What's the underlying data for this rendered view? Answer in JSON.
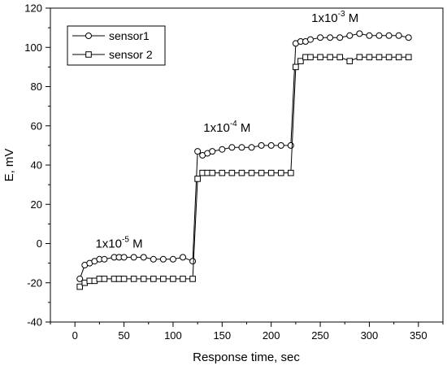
{
  "chart_data": {
    "type": "line",
    "xlabel": "Response time, sec",
    "ylabel": "E, mV",
    "xlim": [
      -25,
      375
    ],
    "ylim": [
      -40,
      120
    ],
    "xticks": [
      0,
      50,
      100,
      150,
      200,
      250,
      300,
      350
    ],
    "yticks": [
      -40,
      -20,
      0,
      20,
      40,
      60,
      80,
      100,
      120
    ],
    "grid": false,
    "legend_position": "top-left",
    "series": [
      {
        "name": "sensor1",
        "marker": "circle",
        "x": [
          5,
          10,
          15,
          20,
          25,
          30,
          40,
          45,
          50,
          60,
          70,
          80,
          90,
          100,
          110,
          120,
          125,
          130,
          135,
          140,
          150,
          160,
          170,
          180,
          190,
          200,
          210,
          220,
          225,
          230,
          235,
          240,
          250,
          260,
          270,
          280,
          290,
          300,
          310,
          320,
          330,
          340
        ],
        "y": [
          -18,
          -11,
          -10,
          -9,
          -8,
          -8,
          -7,
          -7,
          -7,
          -7,
          -7,
          -8,
          -8,
          -8,
          -7,
          -9,
          47,
          45,
          46,
          47,
          48,
          49,
          49,
          49,
          50,
          50,
          50,
          50,
          102,
          103,
          103,
          104,
          105,
          105,
          105,
          106,
          107,
          106,
          106,
          106,
          106,
          105
        ]
      },
      {
        "name": "sensor 2",
        "marker": "square",
        "x": [
          5,
          10,
          15,
          20,
          25,
          30,
          40,
          45,
          50,
          60,
          70,
          80,
          90,
          100,
          110,
          120,
          125,
          130,
          135,
          140,
          150,
          160,
          170,
          180,
          190,
          200,
          210,
          220,
          225,
          230,
          235,
          240,
          250,
          260,
          270,
          280,
          290,
          300,
          310,
          320,
          330,
          340
        ],
        "y": [
          -22,
          -20,
          -19,
          -19,
          -18,
          -18,
          -18,
          -18,
          -18,
          -18,
          -18,
          -18,
          -18,
          -18,
          -18,
          -18,
          33,
          36,
          36,
          36,
          36,
          36,
          36,
          36,
          36,
          36,
          36,
          36,
          90,
          93,
          95,
          95,
          95,
          95,
          95,
          93,
          95,
          95,
          95,
          95,
          95,
          95
        ]
      }
    ],
    "annotations": [
      {
        "base": "1x10",
        "exponent": "-5",
        "unit": " M",
        "x": 45,
        "y": -2
      },
      {
        "base": "1x10",
        "exponent": "-4",
        "unit": " M",
        "x": 155,
        "y": 57
      },
      {
        "base": "1x10",
        "exponent": "-3",
        "unit": " M",
        "x": 265,
        "y": 113
      }
    ]
  },
  "colors": {
    "line": "#000000",
    "marker_fill": "#ffffff",
    "background": "#ffffff"
  }
}
